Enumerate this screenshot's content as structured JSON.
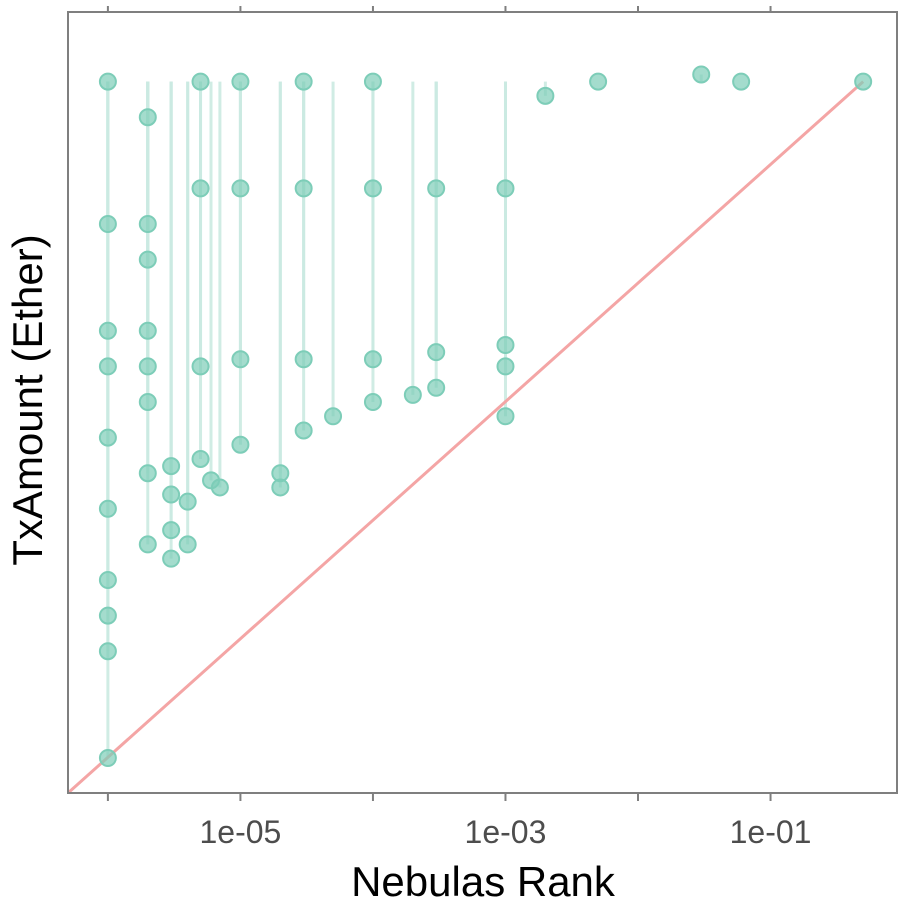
{
  "chart_data": {
    "type": "scatter",
    "xlabel": "Nebulas Rank",
    "ylabel": "TxAmount (Ether)",
    "x_scale": "log10",
    "y_scale": "log",
    "xlim": [
      5e-07,
      0.9
    ],
    "x_ticks": [
      {
        "value": 1e-05,
        "label": "1e-05"
      },
      {
        "value": 0.001,
        "label": "1e-03"
      },
      {
        "value": 0.1,
        "label": "1e-01"
      }
    ],
    "y_tick_labels_shown": false,
    "grid": false,
    "legend": "none",
    "colors": {
      "points": "#7dcdb8",
      "connector_lines": "#cbeae2",
      "diagonal": "#f4a5a5",
      "panel_border": "#7f7f7f",
      "axis_text": "#4d4d4d"
    },
    "series": [
      {
        "x": [
          1e-06,
          1e-06,
          1e-06,
          1e-06,
          1e-06,
          1e-06,
          1e-06,
          1e-06,
          1e-06,
          1e-06,
          2e-06,
          2e-06,
          2e-06,
          2e-06,
          2e-06,
          2e-06,
          2e-06,
          2e-06,
          3e-06,
          3e-06,
          3e-06,
          3e-06,
          4e-06,
          4e-06,
          5e-06,
          6e-06,
          7e-06,
          1e-05,
          2e-05,
          2e-05,
          3e-05,
          5e-05,
          0.0001,
          0.0002,
          0.0003,
          5e-06,
          1e-05,
          3e-05,
          0.0001,
          0.0003,
          0.001,
          0.002,
          5e-06,
          1e-05,
          3e-05,
          0.0001,
          0.0003,
          5e-06,
          1e-05,
          3e-05,
          0.0001,
          0.001,
          0.001,
          0.001,
          0.005,
          0.03,
          0.06,
          0.5
        ],
        "y_level": [
          0.0,
          0.15,
          0.2,
          0.25,
          0.35,
          0.45,
          0.55,
          0.6,
          0.75,
          0.95,
          0.3,
          0.4,
          0.5,
          0.55,
          0.6,
          0.7,
          0.75,
          0.9,
          0.28,
          0.32,
          0.37,
          0.41,
          0.3,
          0.36,
          0.42,
          0.39,
          0.38,
          0.44,
          0.4,
          0.38,
          0.46,
          0.48,
          0.5,
          0.51,
          0.52,
          0.55,
          0.56,
          0.56,
          0.56,
          0.57,
          0.48,
          0.93,
          0.8,
          0.8,
          0.8,
          0.8,
          0.8,
          0.95,
          0.95,
          0.95,
          0.95,
          0.58,
          0.55,
          0.8,
          0.95,
          0.96,
          0.95,
          0.95
        ],
        "y_level_note": "0 = bottom of y range, 1 = top of y range"
      }
    ],
    "reference_line": "y = x diagonal"
  }
}
